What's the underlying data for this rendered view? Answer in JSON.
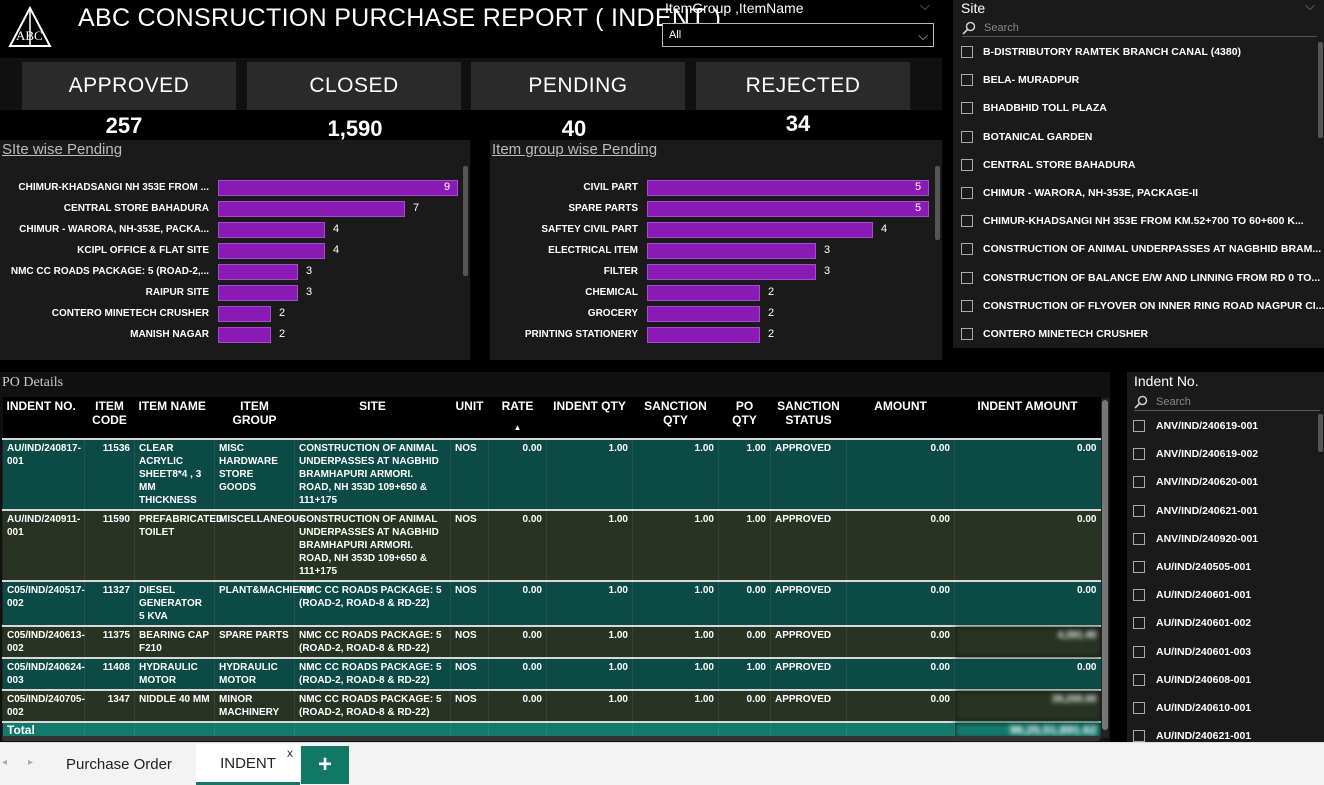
{
  "header": {
    "title": "ABC CONSRUCTION PURCHASE REPORT ( INDENT )",
    "logo_text": "ABC"
  },
  "itemgroup_slicer": {
    "label": "ItemGroup ,ItemName",
    "value": "All"
  },
  "site_slicer": {
    "label": "Site",
    "search_placeholder": "Search",
    "items": [
      "B-DISTRIBUTORY RAMTEK BRANCH CANAL (4380)",
      "BELA- MURADPUR",
      "BHADBHID TOLL PLAZA",
      "BOTANICAL GARDEN",
      "CENTRAL STORE BAHADURA",
      "CHIMUR - WARORA, NH-353E, PACKAGE-II",
      "CHIMUR-KHADSANGI NH 353E FROM KM.52+700 TO 60+600 K...",
      "CONSTRUCTION OF ANIMAL UNDERPASSES AT NAGBHID BRAM...",
      "CONSTRUCTION OF BALANCE E/W AND LINNING FROM RD 0 TO...",
      "CONSTRUCTION OF FLYOVER ON INNER RING ROAD NAGPUR CI...",
      "CONTERO MINETECH CRUSHER"
    ]
  },
  "kpis": [
    {
      "label": "APPROVED",
      "value": "257"
    },
    {
      "label": "CLOSED",
      "value": "1,590"
    },
    {
      "label": "PENDING",
      "value": "40"
    },
    {
      "label": "REJECTED",
      "value": "34"
    }
  ],
  "site_wise": {
    "title": "SIte wise Pending",
    "max": 9,
    "bars": [
      {
        "label": "CHIMUR-KHADSANGI NH 353E FROM ...",
        "value": 9
      },
      {
        "label": "CENTRAL STORE BAHADURA",
        "value": 7
      },
      {
        "label": "CHIMUR - WARORA, NH-353E, PACKA...",
        "value": 4
      },
      {
        "label": "KCIPL OFFICE & FLAT SITE",
        "value": 4
      },
      {
        "label": "NMC CC ROADS PACKAGE: 5 (ROAD-2,...",
        "value": 3
      },
      {
        "label": "RAIPUR SITE",
        "value": 3
      },
      {
        "label": "CONTERO MINETECH CRUSHER",
        "value": 2
      },
      {
        "label": "MANISH NAGAR",
        "value": 2
      }
    ]
  },
  "group_wise": {
    "title": "Item group wise Pending",
    "max": 5,
    "bars": [
      {
        "label": "CIVIL PART",
        "value": 5
      },
      {
        "label": "SPARE PARTS",
        "value": 5
      },
      {
        "label": "SAFTEY CIVIL PART",
        "value": 4
      },
      {
        "label": "ELECTRICAL ITEM",
        "value": 3
      },
      {
        "label": "FILTER",
        "value": 3
      },
      {
        "label": "CHEMICAL",
        "value": 2
      },
      {
        "label": "GROCERY",
        "value": 2
      },
      {
        "label": "PRINTING STATIONERY",
        "value": 2
      }
    ]
  },
  "po": {
    "title": "PO Details",
    "columns": [
      "INDENT NO.",
      "ITEM CODE",
      "ITEM NAME",
      "ITEM GROUP",
      "SITE",
      "UNIT",
      "RATE",
      "INDENT QTY",
      "SANCTION QTY",
      "PO QTY",
      "SANCTION STATUS",
      "AMOUNT",
      "INDENT AMOUNT"
    ],
    "rows": [
      {
        "indent_no": "AU/IND/240817-001",
        "item_code": "11536",
        "item_name": "CLEAR ACRYLIC SHEET8*4 , 3 MM THICKNESS",
        "item_group": "MISC HARDWARE STORE GOODS",
        "site": "CONSTRUCTION OF ANIMAL UNDERPASSES AT NAGBHID BRAMHAPURI ARMORI. ROAD, NH 353D 109+650 & 111+175",
        "unit": "NOS",
        "rate": "0.00",
        "indent_qty": "1.00",
        "sanction_qty": "1.00",
        "po_qty": "1.00",
        "status": "APPROVED",
        "amount": "0.00",
        "indent_amount": "0.00"
      },
      {
        "indent_no": "AU/IND/240911-001",
        "item_code": "11590",
        "item_name": "PREFABRICATED TOILET",
        "item_group": "MISCELLANEOUS",
        "site": "CONSTRUCTION OF ANIMAL UNDERPASSES AT NAGBHID BRAMHAPURI ARMORI. ROAD, NH 353D 109+650 & 111+175",
        "unit": "NOS",
        "rate": "0.00",
        "indent_qty": "1.00",
        "sanction_qty": "1.00",
        "po_qty": "1.00",
        "status": "APPROVED",
        "amount": "0.00",
        "indent_amount": "0.00"
      },
      {
        "indent_no": "C05/IND/240517-002",
        "item_code": "11327",
        "item_name": "DIESEL GENERATOR 5 KVA",
        "item_group": "PLANT&MACHIERY",
        "site": "NMC CC ROADS PACKAGE: 5 (ROAD-2, ROAD-8 & RD-22)",
        "unit": "NOS",
        "rate": "0.00",
        "indent_qty": "1.00",
        "sanction_qty": "1.00",
        "po_qty": "0.00",
        "status": "APPROVED",
        "amount": "0.00",
        "indent_amount": "0.00"
      },
      {
        "indent_no": "C05/IND/240613-002",
        "item_code": "11375",
        "item_name": "BEARING CAP F210",
        "item_group": "SPARE PARTS",
        "site": "NMC CC ROADS PACKAGE: 5 (ROAD-2, ROAD-8 & RD-22)",
        "unit": "NOS",
        "rate": "0.00",
        "indent_qty": "1.00",
        "sanction_qty": "1.00",
        "po_qty": "0.00",
        "status": "APPROVED",
        "amount": "0.00",
        "indent_amount": "4,391.40"
      },
      {
        "indent_no": "C05/IND/240624-003",
        "item_code": "11408",
        "item_name": "HYDRAULIC MOTOR",
        "item_group": "HYDRAULIC MOTOR",
        "site": "NMC CC ROADS PACKAGE: 5 (ROAD-2, ROAD-8 & RD-22)",
        "unit": "NOS",
        "rate": "0.00",
        "indent_qty": "1.00",
        "sanction_qty": "1.00",
        "po_qty": "1.00",
        "status": "APPROVED",
        "amount": "0.00",
        "indent_amount": "0.00"
      },
      {
        "indent_no": "C05/IND/240705-002",
        "item_code": "1347",
        "item_name": "NIDDLE 40 MM",
        "item_group": "MINOR MACHINERY",
        "site": "NMC CC ROADS PACKAGE: 5 (ROAD-2, ROAD-8 & RD-22)",
        "unit": "NOS",
        "rate": "0.00",
        "indent_qty": "1.00",
        "sanction_qty": "1.00",
        "po_qty": "0.00",
        "status": "APPROVED",
        "amount": "0.00",
        "indent_amount": "29,200.00"
      }
    ],
    "total_label": "Total",
    "total_amount": "96,25,51,891.62"
  },
  "indent_slicer": {
    "label": "Indent No.",
    "search_placeholder": "Search",
    "items": [
      "ANV/IND/240619-001",
      "ANV/IND/240619-002",
      "ANV/IND/240620-001",
      "ANV/IND/240621-001",
      "ANV/IND/240920-001",
      "AU/IND/240505-001",
      "AU/IND/240601-001",
      "AU/IND/240601-002",
      "AU/IND/240601-003",
      "AU/IND/240608-001",
      "AU/IND/240610-001",
      "AU/IND/240621-001"
    ]
  },
  "tabs": {
    "purchase_order": "Purchase Order",
    "indent": "INDENT",
    "close": "x",
    "add": "+"
  },
  "colors": {
    "bar": "#8a1ab4",
    "teal_row": "#0c4a45",
    "olive_row": "#283323",
    "total_row": "#127a6c",
    "accent": "#117865"
  }
}
